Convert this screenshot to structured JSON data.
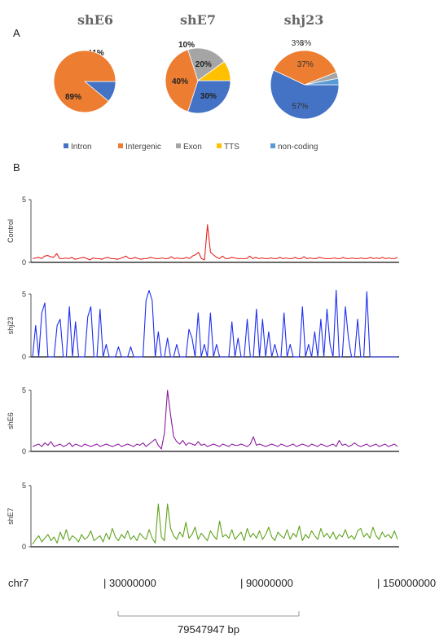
{
  "panel_a_label": "A",
  "panel_b_label": "B",
  "chart_data": [
    {
      "type": "pie",
      "title": "shE6",
      "slices": [
        {
          "category": "Intron",
          "value": 11,
          "label": "11%",
          "color": "#4472c4"
        },
        {
          "category": "Intergenic",
          "value": 89,
          "label": "89%",
          "color": "#ed7d31"
        }
      ]
    },
    {
      "type": "pie",
      "title": "shE7",
      "slices": [
        {
          "category": "Intron",
          "value": 30,
          "label": "30%",
          "color": "#4472c4"
        },
        {
          "category": "Intergenic",
          "value": 40,
          "label": "40%",
          "color": "#ed7d31"
        },
        {
          "category": "Exon",
          "value": 20,
          "label": "20%",
          "color": "#a5a5a5"
        },
        {
          "category": "TTS",
          "value": 10,
          "label": "10%",
          "color": "#ffc000"
        }
      ]
    },
    {
      "type": "pie",
      "title": "shj23",
      "slices": [
        {
          "category": "Intron",
          "value": 57,
          "label": "57%",
          "color": "#4472c4"
        },
        {
          "category": "Intergenic",
          "value": 37,
          "label": "37%",
          "color": "#ed7d31"
        },
        {
          "category": "Exon",
          "value": 3,
          "label": "3%",
          "color": "#a5a5a5"
        },
        {
          "category": "non-coding",
          "value": 3,
          "label": "3%",
          "color": "#5b9bd5"
        }
      ]
    },
    {
      "type": "line",
      "title": "",
      "tracks": [
        {
          "name": "Control",
          "color": "#e8231d",
          "ylim": [
            0,
            5
          ],
          "yticks": [
            "5",
            "0"
          ],
          "values": [
            0.3,
            0.35,
            0.4,
            0.3,
            0.5,
            0.55,
            0.45,
            0.4,
            0.7,
            0.3,
            0.3,
            0.35,
            0.3,
            0.4,
            0.25,
            0.3,
            0.35,
            0.4,
            0.3,
            0.2,
            0.35,
            0.3,
            0.3,
            0.25,
            0.35,
            0.4,
            0.3,
            0.3,
            0.25,
            0.3,
            0.4,
            0.5,
            0.3,
            0.3,
            0.4,
            0.3,
            0.25,
            0.3,
            0.3,
            0.4,
            0.35,
            0.3,
            0.3,
            0.35,
            0.3,
            0.3,
            0.45,
            0.3,
            0.35,
            0.3,
            0.3,
            0.4,
            0.3,
            0.5,
            0.6,
            0.8,
            0.3,
            0.2,
            3.0,
            0.8,
            0.6,
            0.4,
            0.3,
            0.5,
            0.3,
            0.3,
            0.4,
            0.35,
            0.3,
            0.3,
            0.3,
            0.3,
            0.5,
            0.3,
            0.4,
            0.3,
            0.35,
            0.3,
            0.3,
            0.35,
            0.3,
            0.3,
            0.4,
            0.3,
            0.35,
            0.3,
            0.3,
            0.4,
            0.3,
            0.3,
            0.45,
            0.3,
            0.35,
            0.3,
            0.3,
            0.4,
            0.35,
            0.3,
            0.3,
            0.3,
            0.35,
            0.3,
            0.3,
            0.4,
            0.3,
            0.3,
            0.35,
            0.3,
            0.3,
            0.35,
            0.3,
            0.3,
            0.4,
            0.3,
            0.35,
            0.3,
            0.4,
            0.3,
            0.35,
            0.3,
            0.3,
            0.4
          ]
        },
        {
          "name": "shj23",
          "color": "#1f2ef0",
          "ylim": [
            0,
            5
          ],
          "yticks": [
            "5",
            "0"
          ],
          "values": [
            0,
            2.5,
            0,
            3.5,
            4.3,
            0,
            0,
            0,
            2.5,
            3.0,
            0,
            0,
            4.0,
            0,
            2.8,
            0,
            0,
            0,
            3.2,
            4.0,
            0,
            0,
            3.8,
            0,
            1.0,
            0,
            0,
            0,
            0.8,
            0,
            0,
            0,
            0.8,
            0,
            0,
            0,
            0,
            4.5,
            5.3,
            4.5,
            0,
            2.0,
            0,
            0,
            1.5,
            0,
            0,
            1.0,
            0,
            0,
            0,
            2.2,
            1.5,
            0,
            3.5,
            0,
            1.0,
            0,
            3.5,
            0,
            1.0,
            0,
            0,
            0,
            0,
            2.8,
            0,
            1.5,
            0,
            0,
            3.0,
            0,
            0,
            3.8,
            0,
            3.0,
            0,
            2.0,
            0,
            1.0,
            0,
            0,
            3.5,
            0,
            1.0,
            0,
            0,
            0,
            4.0,
            0,
            1.0,
            0,
            2.0,
            0,
            3.0,
            0,
            3.8,
            1.0,
            0,
            5.3,
            0,
            0,
            4.0,
            1.5,
            0,
            0,
            3.0,
            0,
            0,
            5.2,
            0,
            0,
            0,
            0,
            0,
            0,
            0,
            0,
            0,
            0
          ]
        },
        {
          "name": "shE6",
          "color": "#8b1a9e",
          "ylim": [
            0,
            5
          ],
          "yticks": [
            "5",
            "0"
          ],
          "values": [
            0.4,
            0.5,
            0.6,
            0.4,
            0.7,
            0.5,
            0.8,
            0.4,
            0.5,
            0.6,
            0.4,
            0.5,
            0.7,
            0.4,
            0.6,
            0.5,
            0.4,
            0.6,
            0.5,
            0.4,
            0.5,
            0.6,
            0.4,
            0.5,
            0.6,
            0.5,
            0.4,
            0.5,
            0.6,
            0.4,
            0.5,
            0.6,
            0.5,
            0.4,
            0.6,
            0.5,
            0.7,
            0.4,
            0.6,
            0.8,
            1.0,
            0.5,
            0.2,
            1.5,
            5.0,
            3.0,
            1.2,
            0.8,
            0.6,
            0.9,
            0.5,
            0.7,
            0.6,
            0.5,
            0.8,
            0.5,
            0.6,
            0.4,
            0.5,
            0.6,
            0.5,
            0.4,
            0.6,
            0.5,
            0.4,
            0.6,
            0.5,
            0.5,
            0.6,
            0.5,
            0.4,
            0.6,
            1.2,
            0.5,
            0.6,
            0.5,
            0.4,
            0.5,
            0.6,
            0.5,
            0.4,
            0.6,
            0.5,
            0.4,
            0.5,
            0.6,
            0.4,
            0.5,
            0.6,
            0.5,
            0.4,
            0.6,
            0.5,
            0.4,
            0.6,
            0.5,
            0.4,
            0.5,
            0.6,
            0.4,
            0.9,
            0.5,
            0.6,
            0.4,
            0.5,
            0.7,
            0.5,
            0.4,
            0.5,
            0.6,
            0.4,
            0.5,
            0.6,
            0.4,
            0.5,
            0.6,
            0.4,
            0.5,
            0.6,
            0.4
          ]
        },
        {
          "name": "shE7",
          "color": "#5ea21b",
          "ylim": [
            0,
            5
          ],
          "yticks": [
            "5",
            "0"
          ],
          "values": [
            0.2,
            0.6,
            0.9,
            0.4,
            0.7,
            1.0,
            0.5,
            0.8,
            0.3,
            1.2,
            0.6,
            1.4,
            0.5,
            0.9,
            0.7,
            0.4,
            1.0,
            0.6,
            0.8,
            1.3,
            0.5,
            0.7,
            0.9,
            0.4,
            1.1,
            0.6,
            1.5,
            0.8,
            0.5,
            1.0,
            0.7,
            1.3,
            0.6,
            0.9,
            0.5,
            1.1,
            0.8,
            0.6,
            1.4,
            0.7,
            0.3,
            3.5,
            0.8,
            0.5,
            3.5,
            1.5,
            0.9,
            0.6,
            1.2,
            0.8,
            2.0,
            0.7,
            1.0,
            1.6,
            0.6,
            1.1,
            0.8,
            0.5,
            1.3,
            0.9,
            0.6,
            2.1,
            0.8,
            1.0,
            0.7,
            1.4,
            0.6,
            0.9,
            1.2,
            0.5,
            1.5,
            0.8,
            1.1,
            0.7,
            1.3,
            0.6,
            1.0,
            1.6,
            0.8,
            0.5,
            1.2,
            0.9,
            0.7,
            1.4,
            0.6,
            1.1,
            0.8,
            1.7,
            0.5,
            1.0,
            0.7,
            1.3,
            0.9,
            0.6,
            1.5,
            0.8,
            1.1,
            0.7,
            1.2,
            0.6,
            1.0,
            0.8,
            1.4,
            0.7,
            0.9,
            0.6,
            1.3,
            1.5,
            0.8,
            1.1,
            0.7,
            1.6,
            0.9,
            0.6,
            1.2,
            0.8,
            1.0,
            0.7,
            1.3,
            0.6
          ]
        }
      ]
    }
  ],
  "legend": [
    {
      "label": "Intron",
      "color": "#4472c4"
    },
    {
      "label": "Intergenic",
      "color": "#ed7d31"
    },
    {
      "label": "Exon",
      "color": "#a5a5a5"
    },
    {
      "label": "TTS",
      "color": "#ffc000"
    },
    {
      "label": "non-coding",
      "color": "#5b9bd5"
    }
  ],
  "genome_axis": {
    "chrom": "chr7",
    "ticks": [
      "| 30000000",
      "| 90000000",
      "| 150000000"
    ],
    "scale_label": "79547947 bp"
  }
}
